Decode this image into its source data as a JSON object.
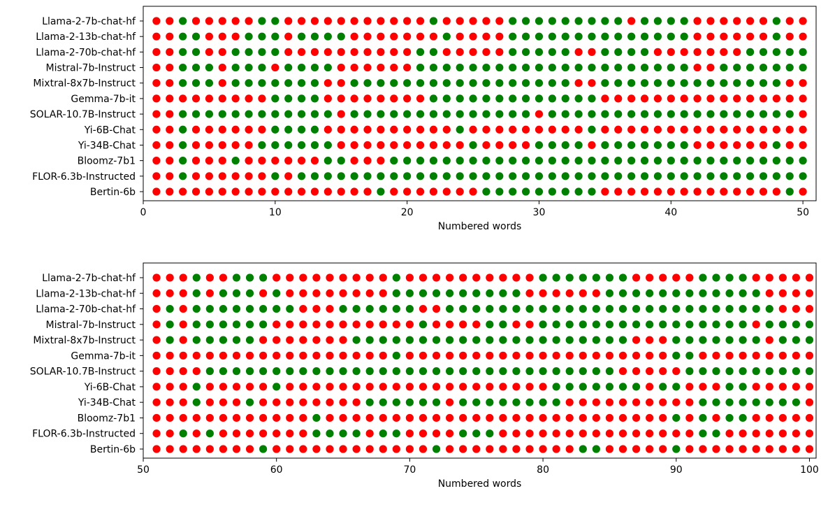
{
  "chart_data": [
    {
      "type": "scatter",
      "xlabel": "Numbered words",
      "ylabel": "",
      "xlim": [
        0,
        51
      ],
      "xticks": [
        0,
        10,
        20,
        30,
        40,
        50
      ],
      "x_start": 1,
      "x_end": 50,
      "legend": "none",
      "grid": false,
      "colors": {
        "correct": "#008000",
        "incorrect": "#ff0000"
      },
      "models": [
        "Llama-2-7b-chat-hf",
        "Llama-2-13b-chat-hf",
        "Llama-2-70b-chat-hf",
        "Mistral-7b-Instruct",
        "Mixtral-8x7b-Instruct",
        "Gemma-7b-it",
        "SOLAR-10.7B-Instruct",
        "Yi-6B-Chat",
        "Yi-34B-Chat",
        "Bloomz-7b1",
        "FLOR-6.3b-Instructed",
        "Bertin-6b"
      ],
      "rows": [
        "RRGRRRRRGGRRRRRRRRRRRGRRRRRGGGGGGGGGRGGGGRRRRRRGRR",
        "RRGGRRRGGGRGGGGRRRRRRRGRRRRGGGGGGGGGGGGGGRRRRRRGRR",
        "RRGGRRGGGGRRRRRRRRRRGGRRRRRGGGGGRRGGGGRRRRRRRGGGGG",
        "RRGGGRGGGRGGGGRRRRRRGGGGGGGGGGGGGGGGGGGGGRRGGGGGGG",
        "RRGGGRGGGGGGGRRGGGGGGGGGGGGGGGGGRRGGGGGGGGGGGGGGRR",
        "RRRRRRRRRGGGGRRRRRRRRGGGGGGGGGGGGGRRRRRRRRRRRRRRRR",
        "RRGGGGGGGGGGGGRGGGGGGGGGGGGGGRGGGGGGGGGGGGGGGGGGGR",
        "RRGRRRRRRGGGGRRRRRRRRRRGRRRRRRRRRGRRRRRRRRRRRRRRRR",
        "RRGRRRRRGGGGGGRRRRRRRRRRGRRRRGGGGRGGGGGGGRRRRRRGRR",
        "RRGRRRGRRRRRRGGRRRGGGGGGGGGGGGGGGGGGGGGGGGGGGGGGGG",
        "RRGRRRRRRGRGGGGGGGGGGGGGGGGGGGGGGGGGGGGGGGGGGGGGGG",
        "RRRRRRRRRRRRRRRRRGRRRRRRRGGGGGGGGGRRRRRRRRRRRRRRGR"
      ]
    },
    {
      "type": "scatter",
      "xlabel": "Numbered words",
      "ylabel": "",
      "xlim": [
        50,
        100.5
      ],
      "xticks": [
        50,
        60,
        70,
        80,
        90,
        100
      ],
      "x_start": 51,
      "x_end": 100,
      "legend": "none",
      "grid": false,
      "colors": {
        "correct": "#008000",
        "incorrect": "#ff0000"
      },
      "models": [
        "Llama-2-7b-chat-hf",
        "Llama-2-13b-chat-hf",
        "Llama-2-70b-chat-hf",
        "Mistral-7b-Instruct",
        "Mixtral-8x7b-Instruct",
        "Gemma-7b-it",
        "SOLAR-10.7B-Instruct",
        "Yi-6B-Chat",
        "Yi-34B-Chat",
        "Bloomz-7b1",
        "FLOR-6.3b-Instructed",
        "Bertin-6b"
      ],
      "rows": [
        "RRRGRRGGGRRRRRRRRRGRRRRRRRRRRGGGGGGGRRRRRGGGGRRRRR",
        "RRRGRGGGRGRRRRRRRRGGGGGGGGGGRRRRRRGGGGGGGGGGGGRRRR",
        "RGRGGGGGGGGRRRGGGGGGRRGGGGGGGGGGGGGGGGGGGGGGGGGRRR",
        "RGRGGGGGGRRRRRRRRRRRGRRRRGGRRGGGGGGGGGGGGGGGGRGGGG",
        "RGRGGGGGRRRRRRRGGGGGGGGGGGGGGGGGGGGGRRRGGGGGGGRGGG",
        "RRRRRRRRRRRRRRRRRRGRRRRRRRRRRRRRRRRRRRRGGRRRRRRRRR",
        "RRRRGGGGGGGGGGGGGGGGGGGGGGGGGGGGGGGRRRRRGGGGGGGGGG",
        "RRRGRRRRRGRRRRRRRRRRRRRRRRRRRRGGGGGGGRGGRRRGGRRRRR",
        "RRRGRRRGRRRRRRRRGGGGGGRGGGGGGGGRRRRRRRRRRGGGGGGGGR",
        "RRRRRRRRRRRRGRRRRRRRRRRRRRRRRRRRRRRRRRRGRGRGGRRRRR",
        "RRGRGRRRRRRRGGGGRGGRRRRGGGRRRRRRRRRRRRRRRGGRRRRRRR",
        "RRRRRRRRGRRRRRRRRRRRRGRRRRRRRRRRGGRRRRRGRRRRRRRRRR"
      ]
    }
  ]
}
